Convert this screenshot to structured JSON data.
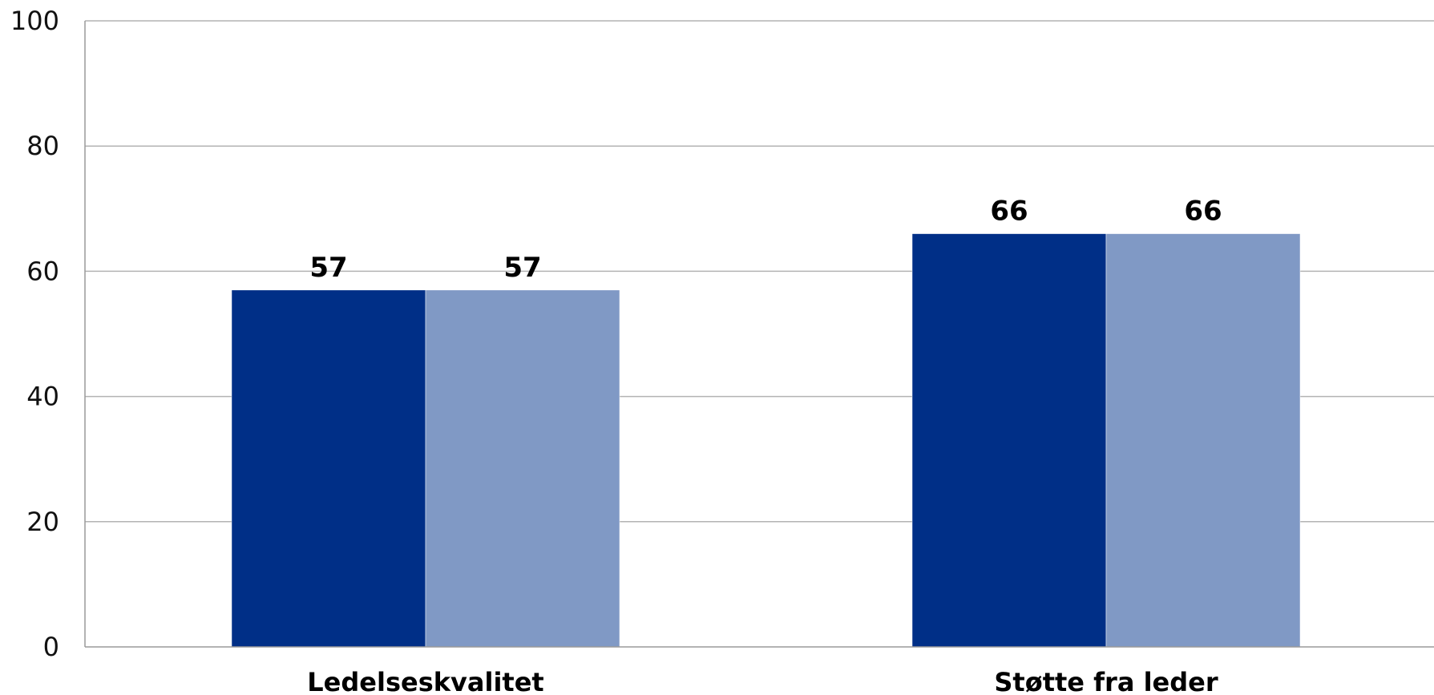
{
  "chart_data": {
    "type": "bar",
    "categories": [
      "Ledelseskvalitet",
      "Støtte fra leder"
    ],
    "series": [
      {
        "values": [
          57,
          66
        ],
        "color": "#002f87"
      },
      {
        "values": [
          57,
          66
        ],
        "color": "#8099c5"
      }
    ],
    "ylim": [
      0,
      100
    ],
    "y_ticks": [
      0,
      20,
      40,
      60,
      80,
      100
    ],
    "grid": true,
    "legend": "none",
    "title": "",
    "xlabel": "",
    "ylabel": ""
  }
}
